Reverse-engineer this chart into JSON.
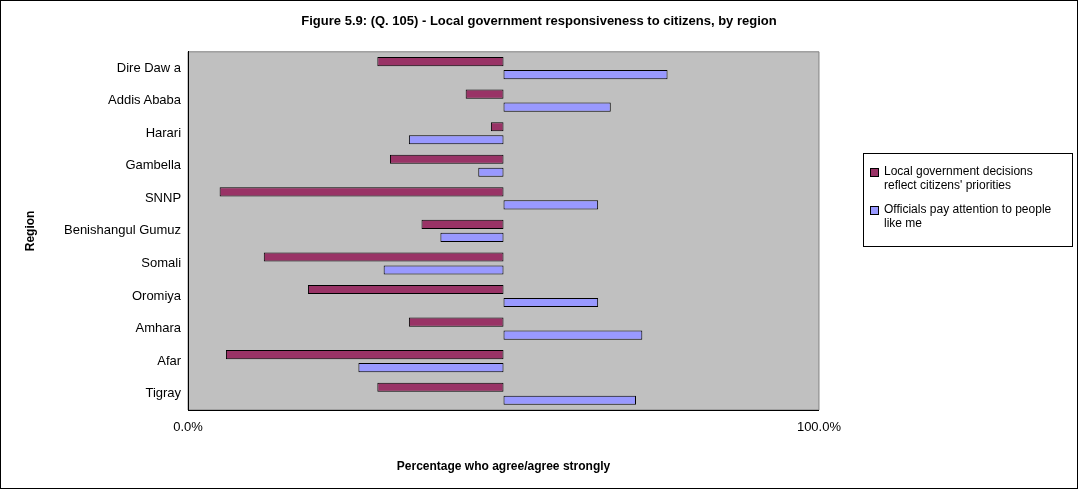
{
  "chart_data": {
    "type": "bar",
    "orientation": "horizontal",
    "title": "Figure 5.9: (Q. 105) - Local government responsiveness to citizens, by region",
    "xlabel": "Percentage who agree/agree strongly",
    "ylabel": "Region",
    "categories": [
      "Dire Daw a",
      "Addis Ababa",
      "Harari",
      "Gambella",
      "SNNP",
      "Benishangul Gumuz",
      "Somali",
      "Oromiya",
      "Amhara",
      "Afar",
      "Tigray"
    ],
    "series": [
      {
        "name": "Local government decisions reflect citizens' priorities",
        "color": "#993366",
        "base": [
          50,
          50,
          50,
          50,
          50,
          50,
          50,
          50,
          50,
          50,
          50
        ],
        "values": [
          -20,
          -6,
          -2,
          -18,
          -45,
          -13,
          -38,
          -31,
          -15,
          -44,
          -20
        ]
      },
      {
        "name": "Officials pay attention to people like me",
        "color": "#9999ff",
        "base": [
          50,
          50,
          50,
          50,
          50,
          50,
          50,
          50,
          50,
          50,
          50
        ],
        "values": [
          26,
          17,
          -15,
          -4,
          15,
          -10,
          -19,
          15,
          22,
          -23,
          21
        ]
      }
    ],
    "xlim": [
      0,
      100
    ],
    "xticks": [
      {
        "value": 0,
        "label": "0.0%"
      },
      {
        "value": 100,
        "label": "100.0%"
      }
    ],
    "grid": false,
    "legend": "right"
  }
}
